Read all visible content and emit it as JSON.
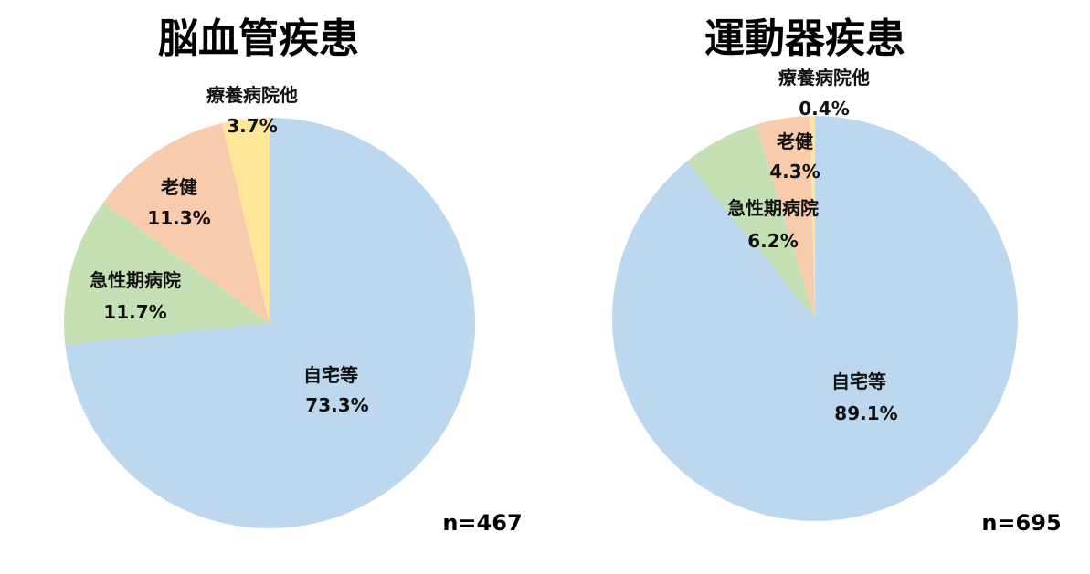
{
  "chart_data": [
    {
      "type": "pie",
      "title": "脳血管疾患",
      "n_label": "n=467",
      "series": [
        {
          "values": [
            {
              "label": "自宅等",
              "value": 73.3,
              "value_label": "73.3%",
              "color": "#bdd7ee"
            },
            {
              "label": "急性期病院",
              "value": 11.7,
              "value_label": "11.7%",
              "color": "#c5e0b4"
            },
            {
              "label": "老健",
              "value": 11.3,
              "value_label": "11.3%",
              "color": "#f8cbad"
            },
            {
              "label": "療養病院他",
              "value": 3.7,
              "value_label": "3.7%",
              "color": "#ffe699"
            }
          ]
        }
      ],
      "start": "12 o'clock, clockwise"
    },
    {
      "type": "pie",
      "title": "運動器疾患",
      "n_label": "n=695",
      "series": [
        {
          "values": [
            {
              "label": "自宅等",
              "value": 89.1,
              "value_label": "89.1%",
              "color": "#bdd7ee"
            },
            {
              "label": "急性期病院",
              "value": 6.2,
              "value_label": "6.2%",
              "color": "#c5e0b4"
            },
            {
              "label": "老健",
              "value": 4.3,
              "value_label": "4.3%",
              "color": "#f8cbad"
            },
            {
              "label": "療養病院他",
              "value": 0.4,
              "value_label": "0.4%",
              "color": "#ffe699"
            }
          ]
        }
      ],
      "start": "12 o'clock, clockwise"
    }
  ]
}
